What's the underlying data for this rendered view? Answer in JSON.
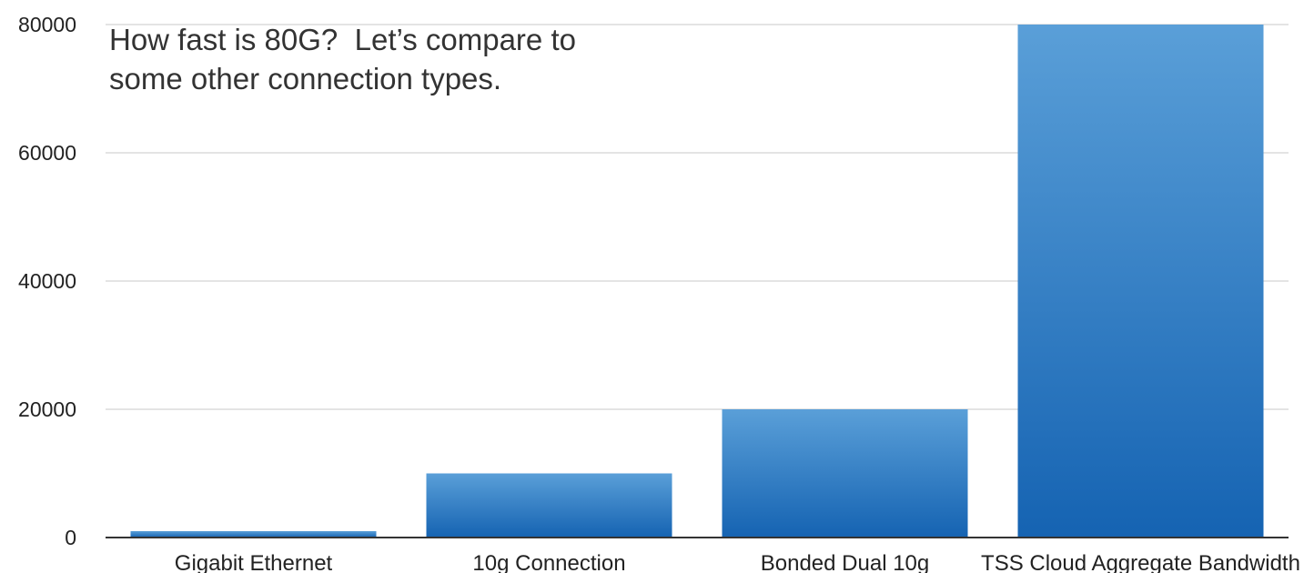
{
  "chart_data": {
    "type": "bar",
    "categories": [
      "Gigabit Ethernet",
      "10g Connection",
      "Bonded Dual 10g",
      "TSS Cloud Aggregate Bandwidth"
    ],
    "values": [
      1000,
      10000,
      20000,
      80000
    ],
    "yticks": [
      "0",
      "20000",
      "40000",
      "60000",
      "80000"
    ],
    "ylim": [
      0,
      80000
    ],
    "grid": true,
    "annotation": [
      "How fast is 80G?  Let’s compare to",
      "some other connection types."
    ],
    "colors": {
      "bar_top": "#5a9fd8",
      "bar_bottom": "#1563b2",
      "grid": "#c8c8c8",
      "axis": "#333333"
    }
  }
}
